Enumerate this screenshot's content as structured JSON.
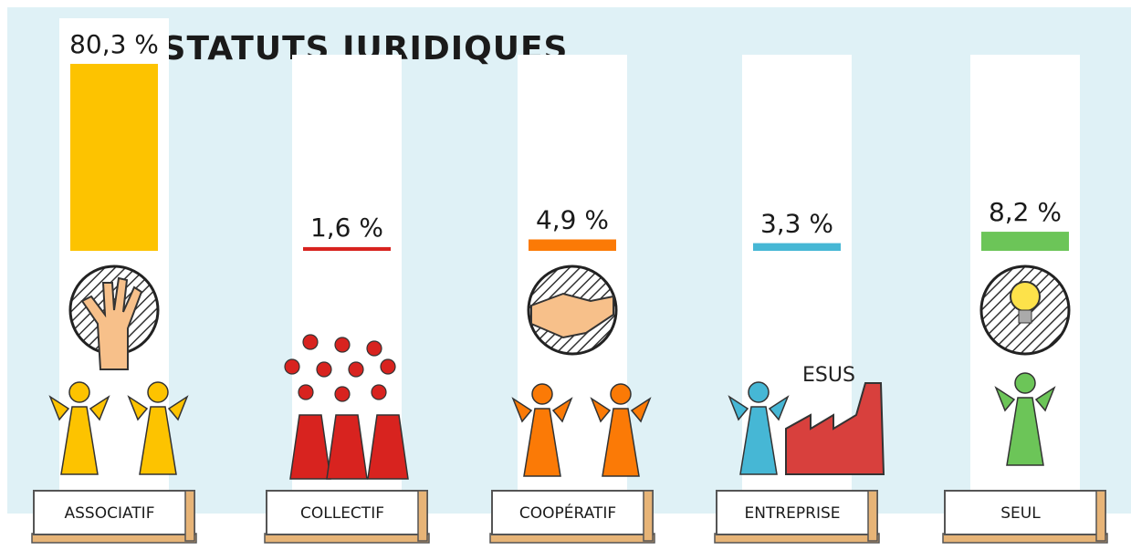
{
  "chart_data": {
    "type": "bar",
    "title": "STATUTS JURIDIQUES",
    "categories": [
      "ASSOCIATIF",
      "COLLECTIF",
      "COOPÉRATIF",
      "ENTREPRISE",
      "SEUL"
    ],
    "values": [
      80.3,
      1.6,
      4.9,
      3.3,
      8.2
    ],
    "value_labels": [
      "80,3 %",
      "1,6 %",
      "4,9 %",
      "3,3 %",
      "8,2 %"
    ],
    "colors": [
      "#fdc300",
      "#d8231f",
      "#fb7a06",
      "#46b7d5",
      "#6cc558"
    ],
    "annotations": [
      "ESUS"
    ]
  }
}
